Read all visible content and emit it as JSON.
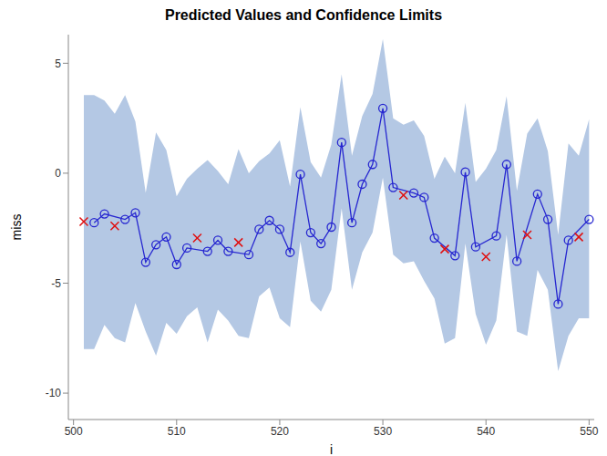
{
  "chart_data": {
    "type": "line",
    "title": "Predicted Values and Confidence Limits",
    "x_label": "i",
    "y_label": "miss",
    "x": [
      501,
      502,
      503,
      504,
      505,
      506,
      507,
      508,
      509,
      510,
      511,
      512,
      513,
      514,
      515,
      516,
      517,
      518,
      519,
      520,
      521,
      522,
      523,
      524,
      525,
      526,
      527,
      528,
      529,
      530,
      531,
      532,
      533,
      534,
      535,
      536,
      537,
      538,
      539,
      540,
      541,
      542,
      543,
      544,
      545,
      546,
      547,
      548,
      549,
      550
    ],
    "series": [
      {
        "type": "area",
        "color": "#b4c8e4",
        "lower": [
          -8.0,
          -8.0,
          -6.9,
          -7.5,
          -7.7,
          -5.9,
          -7.2,
          -8.3,
          -6.8,
          -7.3,
          -6.5,
          -6.1,
          -7.7,
          -6.2,
          -6.7,
          -7.4,
          -7.5,
          -5.6,
          -5.2,
          -6.6,
          -7.0,
          -3.1,
          -5.8,
          -6.3,
          -5.3,
          -1.6,
          -5.3,
          -3.6,
          -2.7,
          -0.2,
          -3.7,
          -4.1,
          -4.0,
          -4.9,
          -5.7,
          -7.75,
          -7.5,
          -3.2,
          -6.4,
          -7.8,
          -6.7,
          -2.8,
          -7.2,
          -7.4,
          -4.4,
          -5.3,
          -9.0,
          -7.4,
          -6.6,
          -6.6
        ],
        "upper": [
          3.55,
          3.55,
          3.3,
          2.7,
          3.55,
          2.35,
          -0.9,
          1.85,
          1.05,
          -1.05,
          -0.25,
          0.2,
          0.6,
          0.1,
          -0.5,
          1.1,
          0.0,
          0.55,
          0.9,
          1.5,
          -0.6,
          3.0,
          0.5,
          -0.2,
          1.3,
          4.5,
          0.8,
          2.6,
          3.6,
          6.1,
          2.5,
          2.2,
          2.4,
          1.7,
          -0.25,
          0.75,
          0.0,
          3.2,
          -0.4,
          0.2,
          1.05,
          3.5,
          -0.8,
          1.8,
          2.5,
          1.0,
          -2.8,
          1.35,
          0.8,
          2.45
        ]
      },
      {
        "type": "line",
        "marker": "circle",
        "color": "#2626d0",
        "values": [
          null,
          -2.25,
          -1.85,
          null,
          -2.1,
          -1.8,
          -4.05,
          -3.25,
          -2.9,
          -4.15,
          -3.4,
          null,
          -3.55,
          -3.05,
          -3.55,
          null,
          -3.7,
          -2.55,
          -2.15,
          -2.55,
          -3.6,
          -0.05,
          -2.7,
          -3.2,
          -2.45,
          1.4,
          -2.25,
          -0.5,
          0.4,
          2.95,
          -0.65,
          null,
          -0.9,
          -1.1,
          -2.95,
          null,
          -3.75,
          0.05,
          -3.35,
          null,
          -2.85,
          0.4,
          -4.0,
          null,
          -0.95,
          -2.1,
          -5.95,
          -3.05,
          null,
          -2.1
        ]
      },
      {
        "type": "scatter",
        "marker": "x",
        "color": "#e01010",
        "values": [
          -2.2,
          null,
          null,
          -2.4,
          null,
          null,
          null,
          null,
          null,
          null,
          null,
          -2.95,
          null,
          null,
          null,
          -3.15,
          null,
          null,
          null,
          null,
          null,
          null,
          null,
          null,
          null,
          null,
          null,
          null,
          null,
          null,
          null,
          -1.0,
          null,
          null,
          null,
          -3.45,
          null,
          null,
          null,
          -3.8,
          null,
          null,
          null,
          -2.8,
          null,
          null,
          null,
          null,
          -2.9,
          null
        ]
      }
    ],
    "xlim": [
      499.5,
      550.5
    ],
    "xticks": [
      500,
      510,
      520,
      530,
      540,
      550
    ],
    "ylim": [
      -11.2,
      6.3
    ],
    "yticks": [
      -10,
      -5,
      0,
      5
    ],
    "grid": false
  }
}
